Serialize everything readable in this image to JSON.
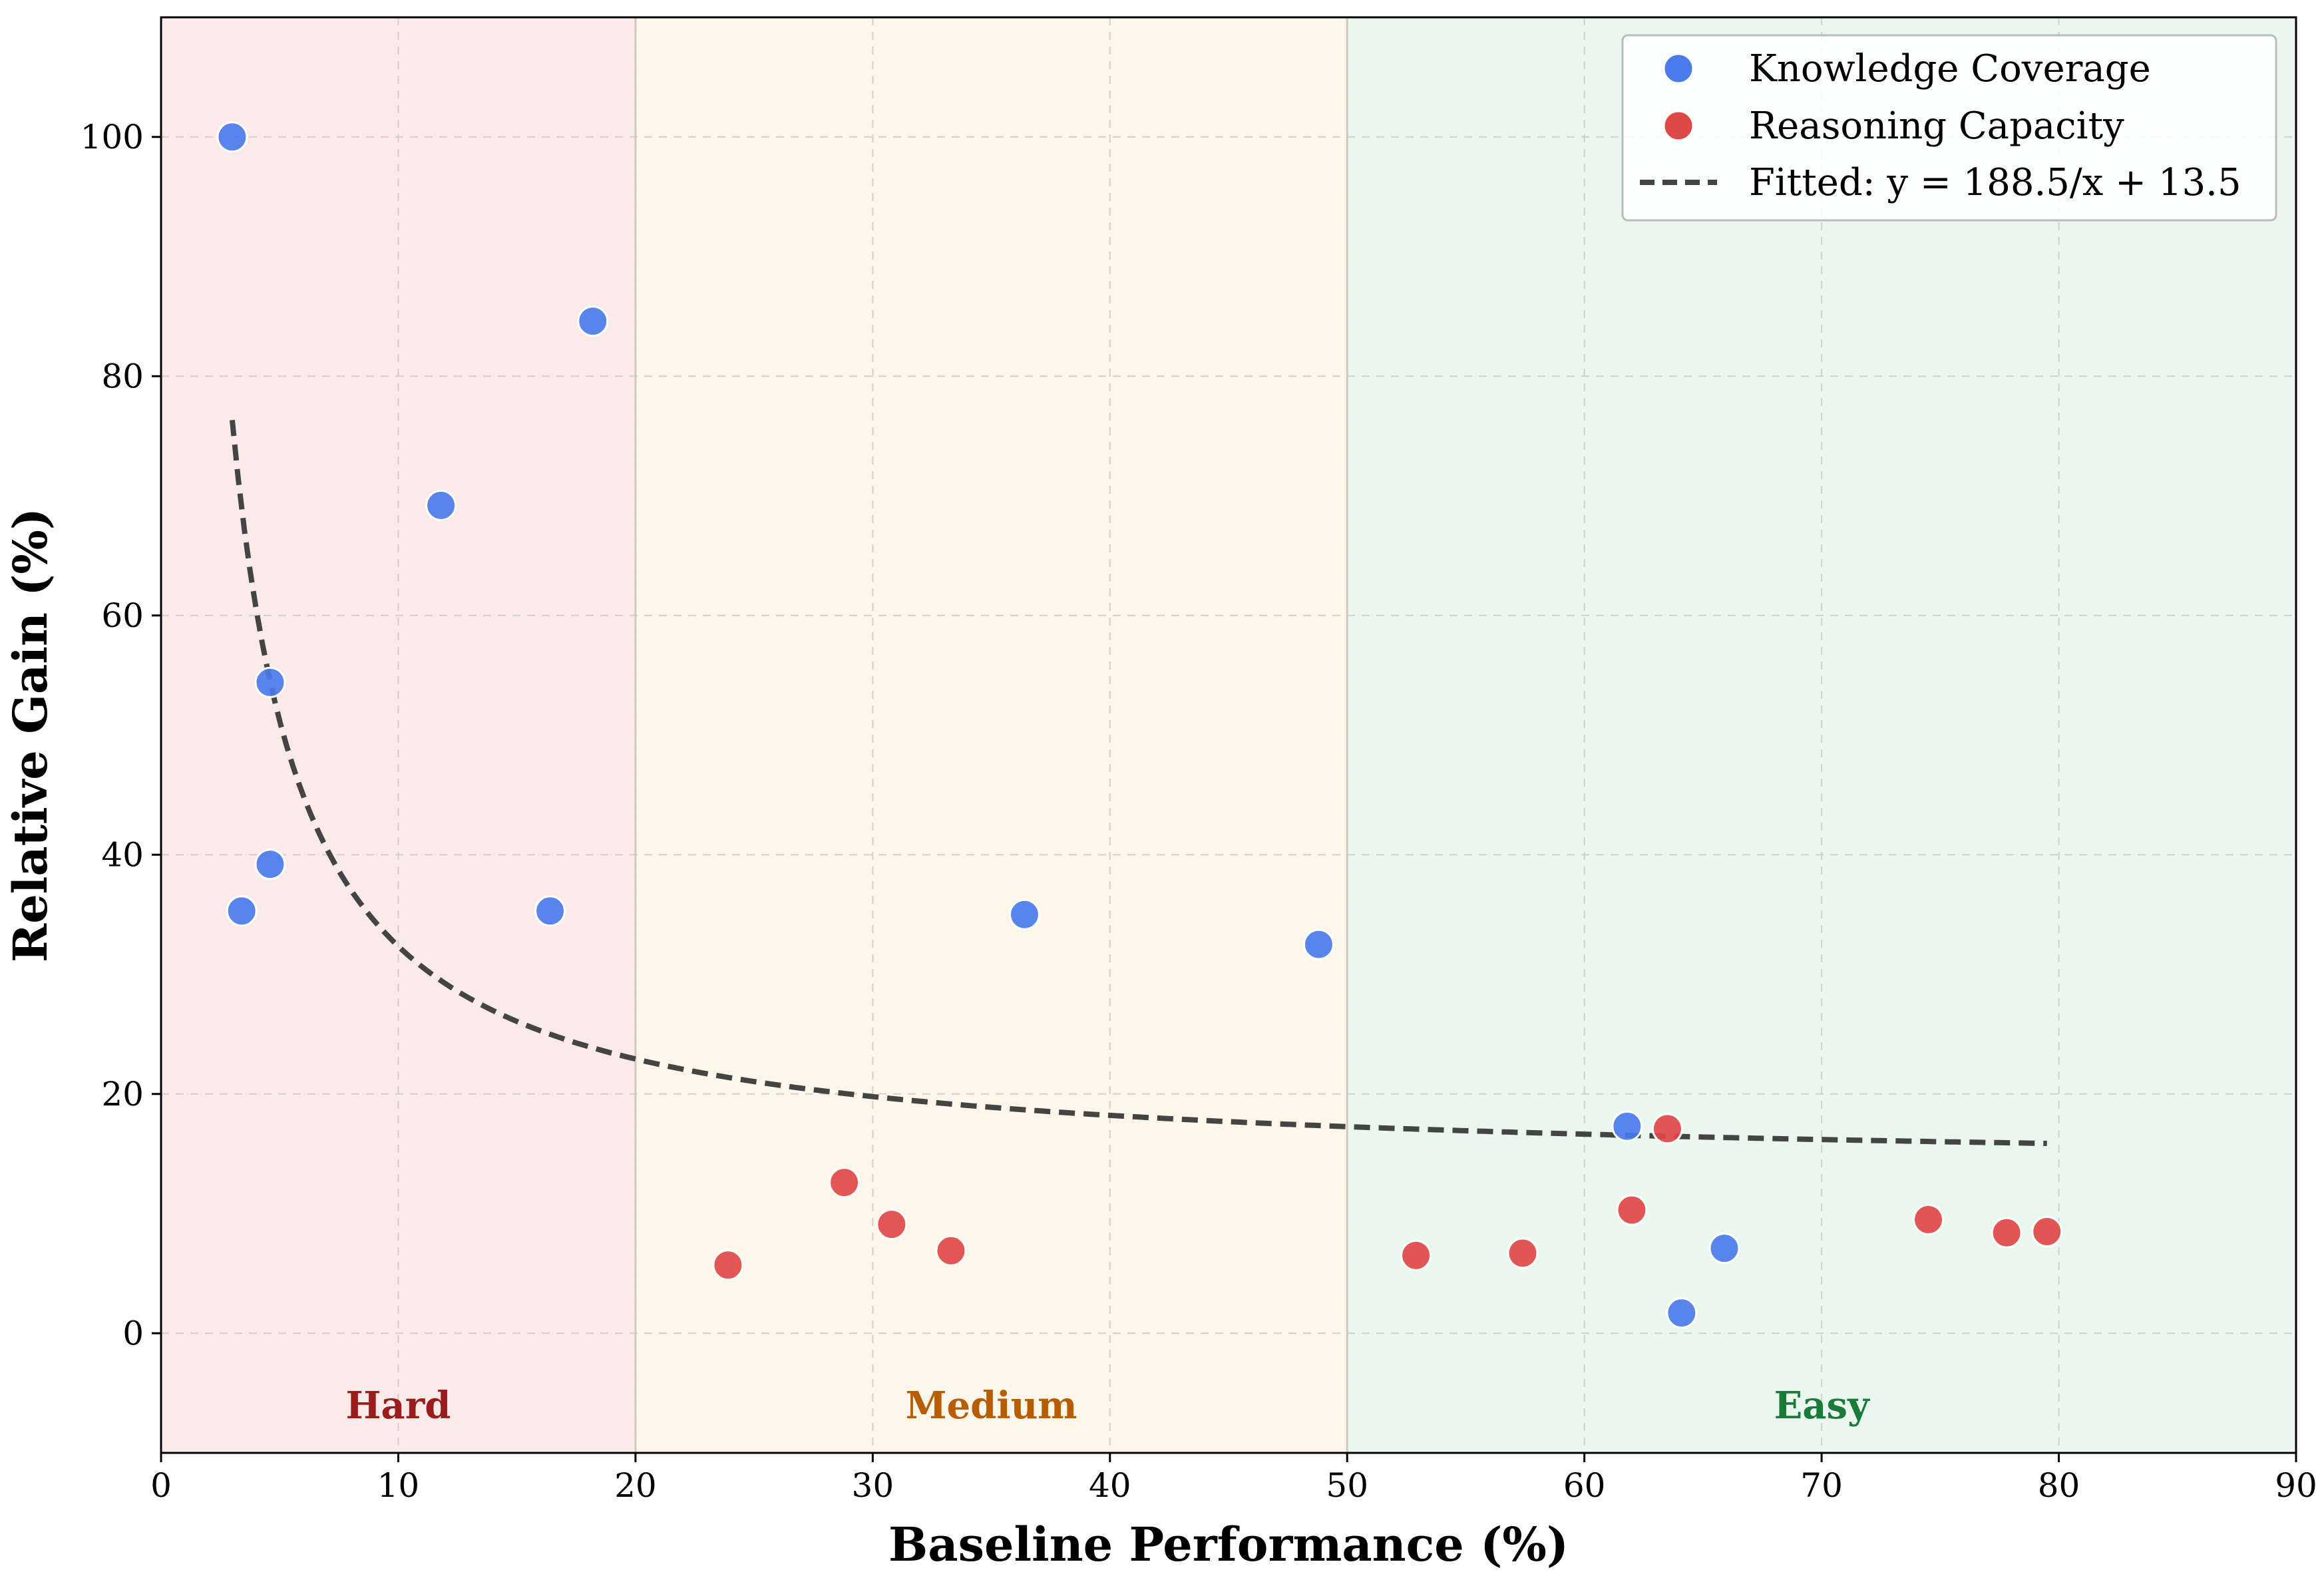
{
  "chart_data": {
    "type": "scatter",
    "title": "",
    "xlabel": "Baseline Performance (%)",
    "ylabel": "Relative Gain (%)",
    "xlim": [
      0,
      90
    ],
    "ylim": [
      -10,
      110
    ],
    "xticks": [
      0,
      10,
      20,
      30,
      40,
      50,
      60,
      70,
      80,
      90
    ],
    "yticks": [
      0,
      20,
      40,
      60,
      80,
      100
    ],
    "grid": true,
    "legend_position": "top-right",
    "regions": [
      {
        "label": "Hard",
        "x_range": [
          0,
          20
        ],
        "fill": "#fbeaea",
        "text_color": "#9b1c1c",
        "label_x": 10
      },
      {
        "label": "Medium",
        "x_range": [
          20,
          50
        ],
        "fill": "#fdf6ea",
        "text_color": "#b85c00",
        "label_x": 35
      },
      {
        "label": "Easy",
        "x_range": [
          50,
          90
        ],
        "fill": "#eaf7ee",
        "text_color": "#1a7a3a",
        "label_x": 70
      }
    ],
    "region_label_y": -6,
    "series": [
      {
        "name": "Knowledge Coverage",
        "color": "#4a7bea",
        "points": [
          {
            "x": 3.0,
            "y": 100.0
          },
          {
            "x": 3.4,
            "y": 35.3
          },
          {
            "x": 4.6,
            "y": 54.4
          },
          {
            "x": 4.6,
            "y": 39.2
          },
          {
            "x": 11.8,
            "y": 69.2
          },
          {
            "x": 16.4,
            "y": 35.3
          },
          {
            "x": 18.2,
            "y": 84.6
          },
          {
            "x": 36.4,
            "y": 35.0
          },
          {
            "x": 48.8,
            "y": 32.5
          },
          {
            "x": 61.8,
            "y": 17.3
          },
          {
            "x": 64.1,
            "y": 1.7
          },
          {
            "x": 65.9,
            "y": 7.1
          }
        ]
      },
      {
        "name": "Reasoning Capacity",
        "color": "#e04848",
        "points": [
          {
            "x": 23.9,
            "y": 5.7
          },
          {
            "x": 28.8,
            "y": 12.6
          },
          {
            "x": 30.8,
            "y": 9.1
          },
          {
            "x": 33.3,
            "y": 6.9
          },
          {
            "x": 52.9,
            "y": 6.5
          },
          {
            "x": 57.4,
            "y": 6.7
          },
          {
            "x": 62.0,
            "y": 10.3
          },
          {
            "x": 63.5,
            "y": 17.1
          },
          {
            "x": 74.5,
            "y": 9.5
          },
          {
            "x": 77.8,
            "y": 8.4
          },
          {
            "x": 79.5,
            "y": 8.5
          }
        ]
      }
    ],
    "fit": {
      "name": "Fitted: y = 188.5/x + 13.5",
      "a": 188.5,
      "b": 13.5,
      "x_range": [
        3.0,
        79.5
      ],
      "color": "#444444"
    }
  }
}
